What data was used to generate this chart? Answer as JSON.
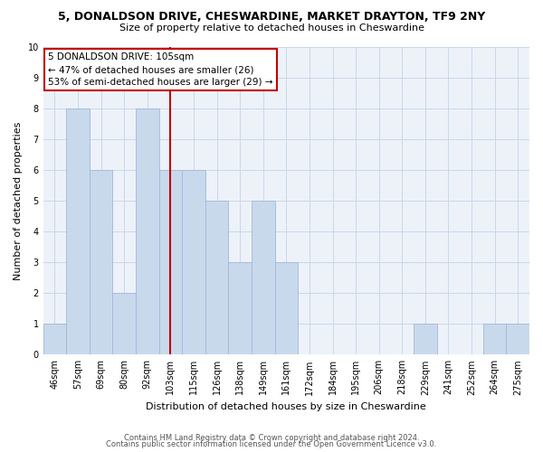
{
  "title": "5, DONALDSON DRIVE, CHESWARDINE, MARKET DRAYTON, TF9 2NY",
  "subtitle": "Size of property relative to detached houses in Cheswardine",
  "xlabel": "Distribution of detached houses by size in Cheswardine",
  "ylabel": "Number of detached properties",
  "bar_labels": [
    "46sqm",
    "57sqm",
    "69sqm",
    "80sqm",
    "92sqm",
    "103sqm",
    "115sqm",
    "126sqm",
    "138sqm",
    "149sqm",
    "161sqm",
    "172sqm",
    "184sqm",
    "195sqm",
    "206sqm",
    "218sqm",
    "229sqm",
    "241sqm",
    "252sqm",
    "264sqm",
    "275sqm"
  ],
  "bar_heights": [
    1,
    8,
    6,
    2,
    8,
    6,
    6,
    5,
    3,
    5,
    3,
    0,
    0,
    0,
    0,
    0,
    1,
    0,
    0,
    1,
    1
  ],
  "bar_color": "#c9d9ec",
  "bar_edge_color": "#a0b8d8",
  "highlight_color": "#c20000",
  "ylim": [
    0,
    10
  ],
  "annotation_title": "5 DONALDSON DRIVE: 105sqm",
  "annotation_line1": "← 47% of detached houses are smaller (26)",
  "annotation_line2": "53% of semi-detached houses are larger (29) →",
  "footer1": "Contains HM Land Registry data © Crown copyright and database right 2024.",
  "footer2": "Contains public sector information licensed under the Open Government Licence v3.0.",
  "grid_color": "#c8d8e8",
  "background_color": "#edf2f9",
  "red_line_index": 5,
  "title_fontsize": 9,
  "subtitle_fontsize": 8,
  "tick_fontsize": 7,
  "ylabel_fontsize": 8,
  "xlabel_fontsize": 8
}
